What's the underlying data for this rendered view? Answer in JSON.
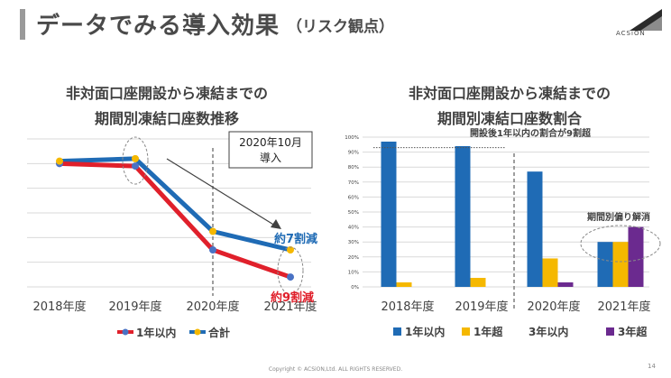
{
  "header": {
    "title": "データでみる導入効果",
    "subtitle": "（リスク観点）",
    "logo_text": "ACSiON"
  },
  "footer": {
    "copyright": "Copyright © ACSiON,Ltd. ALL RIGHTS RESERVED.",
    "page_number": "14"
  },
  "colors": {
    "red": "#e0202b",
    "blue": "#1f6bb5",
    "yellow": "#f5b800",
    "purple": "#6b2a8f",
    "grid": "#d9d9d9",
    "dashed": "#7f7f7f"
  },
  "chart_data": [
    {
      "type": "line",
      "title_line1": "非対面口座開設から凍結までの",
      "title_line2": "期間別凍結口座数推移",
      "categories": [
        "2018年度",
        "2019年度",
        "2020年度",
        "2021年度"
      ],
      "series": [
        {
          "name": "1年以内",
          "color": "#e0202b",
          "marker_color": "#4a72c4",
          "values": [
            100,
            98,
            30,
            8
          ]
        },
        {
          "name": "合計",
          "color": "#1f6bb5",
          "marker_color": "#f5b800",
          "values": [
            102,
            104,
            45,
            30
          ]
        }
      ],
      "ylim": [
        0,
        120
      ],
      "grid": true,
      "legend_position": "bottom",
      "annotations": {
        "callout": [
          "2020年10月",
          "導入"
        ],
        "reduction_total": "約7割減",
        "reduction_1yr": "約9割減"
      }
    },
    {
      "type": "bar",
      "title_line1": "非対面口座開設から凍結までの",
      "title_line2": "期間別凍結口座数割合",
      "categories": [
        "2018年度",
        "2019年度",
        "2020年度",
        "2021年度"
      ],
      "series": [
        {
          "name": "1年以内",
          "color": "#1f6bb5",
          "values": [
            97,
            94,
            77,
            30
          ]
        },
        {
          "name": "1年超",
          "color": "#f5b800",
          "values": [
            3,
            6,
            19,
            30
          ]
        },
        {
          "name": "3年以内",
          "color": "#f5b800",
          "values": [
            0,
            0,
            0,
            0
          ]
        },
        {
          "name": "3年超",
          "color": "#6b2a8f",
          "values": [
            0,
            0,
            3,
            40
          ]
        }
      ],
      "legend_labels": [
        "1年以内",
        "1年超",
        "3年以内",
        "3年超"
      ],
      "ylim": [
        0,
        100
      ],
      "yticks": [
        "0%",
        "10%",
        "20%",
        "30%",
        "40%",
        "50%",
        "60%",
        "70%",
        "80%",
        "90%",
        "100%"
      ],
      "grid": true,
      "legend_position": "bottom",
      "annotations": {
        "top_note": "開設後1年以内の割合が9割超",
        "right_note": "期間別偏り解消"
      }
    }
  ]
}
